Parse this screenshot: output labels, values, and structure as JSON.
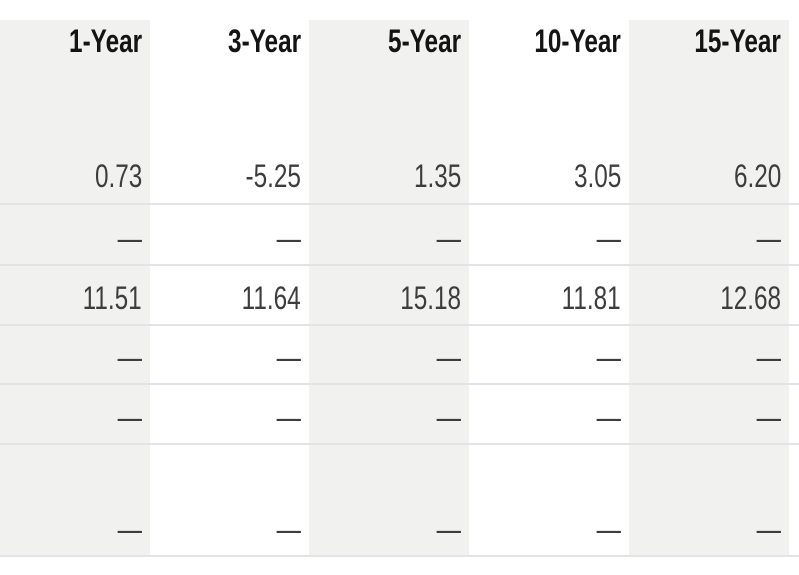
{
  "table": {
    "headers": [
      "1-Year",
      "3-Year",
      "5-Year",
      "10-Year",
      "15-Year"
    ],
    "rows": [
      [
        "0.73",
        "-5.25",
        "1.35",
        "3.05",
        "6.20"
      ],
      [
        "—",
        "—",
        "—",
        "—",
        "—"
      ],
      [
        "11.51",
        "11.64",
        "15.18",
        "11.81",
        "12.68"
      ],
      [
        "—",
        "—",
        "—",
        "—",
        "—"
      ],
      [
        "—",
        "—",
        "—",
        "—",
        "—"
      ],
      [
        "—",
        "—",
        "—",
        "—",
        "—"
      ]
    ]
  },
  "chart_data": {
    "type": "table",
    "title": "",
    "columns": [
      "1-Year",
      "3-Year",
      "5-Year",
      "10-Year",
      "15-Year"
    ],
    "rows": [
      {
        "values": [
          0.73,
          -5.25,
          1.35,
          3.05,
          6.2
        ]
      },
      {
        "values": [
          null,
          null,
          null,
          null,
          null
        ]
      },
      {
        "values": [
          11.51,
          11.64,
          15.18,
          11.81,
          12.68
        ]
      },
      {
        "values": [
          null,
          null,
          null,
          null,
          null
        ]
      },
      {
        "values": [
          null,
          null,
          null,
          null,
          null
        ]
      },
      {
        "values": [
          null,
          null,
          null,
          null,
          null
        ]
      }
    ],
    "null_display": "—",
    "layout_hints": {
      "shaded_columns": [
        1,
        3,
        5
      ],
      "alignment": "right",
      "row_dividers": true
    }
  },
  "colors": {
    "background": "#ffffff",
    "column_stripe": "#f1f1f0",
    "divider_line": "#e3e3e3",
    "header_text": "#141414",
    "value_text": "#3d3d3d"
  }
}
